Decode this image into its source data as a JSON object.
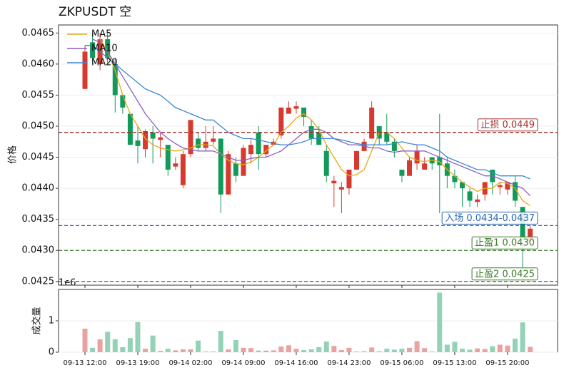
{
  "chart_data": {
    "type": "candlestick",
    "title": "ZKPUSDT  空",
    "ylabel": "价格",
    "volume_ylabel": "成交量",
    "volume_offset": "1e6",
    "x": [
      "09-13 12:00",
      "09-13 13:00",
      "09-13 14:00",
      "09-13 15:00",
      "09-13 16:00",
      "09-13 17:00",
      "09-13 18:00",
      "09-13 19:00",
      "09-13 20:00",
      "09-13 21:00",
      "09-13 22:00",
      "09-13 23:00",
      "09-14 00:00",
      "09-14 01:00",
      "09-14 02:00",
      "09-14 03:00",
      "09-14 04:00",
      "09-14 05:00",
      "09-14 06:00",
      "09-14 07:00",
      "09-14 08:00",
      "09-14 09:00",
      "09-14 10:00",
      "09-14 11:00",
      "09-14 12:00",
      "09-14 13:00",
      "09-14 14:00",
      "09-14 15:00",
      "09-14 16:00",
      "09-14 17:00",
      "09-14 18:00",
      "09-14 19:00",
      "09-14 20:00",
      "09-14 21:00",
      "09-14 22:00",
      "09-14 23:00",
      "09-15 00:00",
      "09-15 01:00",
      "09-15 02:00",
      "09-15 03:00",
      "09-15 04:00",
      "09-15 05:00",
      "09-15 06:00",
      "09-15 07:00",
      "09-15 08:00",
      "09-15 09:00",
      "09-15 10:00",
      "09-15 11:00",
      "09-15 12:00",
      "09-15 13:00",
      "09-15 14:00",
      "09-15 15:00",
      "09-15 16:00",
      "09-15 17:00",
      "09-15 18:00",
      "09-15 19:00",
      "09-15 20:00",
      "09-15 21:00",
      "09-15 22:00",
      "09-15 23:00"
    ],
    "open": [
      0.0456,
      0.04635,
      0.046,
      0.0464,
      0.046,
      0.0455,
      0.0452,
      0.04477,
      0.04463,
      0.0449,
      0.04478,
      0.0447,
      0.04435,
      0.04405,
      0.04455,
      0.0448,
      0.04465,
      0.04475,
      0.0448,
      0.0439,
      0.0444,
      0.0442,
      0.04455,
      0.0449,
      0.04455,
      0.0447,
      0.04485,
      0.0452,
      0.04528,
      0.0453,
      0.045,
      0.0449,
      0.0446,
      0.04408,
      0.04398,
      0.044,
      0.0443,
      0.0446,
      0.0448,
      0.045,
      0.0449,
      0.04475,
      0.0443,
      0.0442,
      0.0444,
      0.0443,
      0.0445,
      0.0445,
      0.0444,
      0.0442,
      0.0441,
      0.04395,
      0.04378,
      0.0439,
      0.0443,
      0.04402,
      0.04398,
      0.0441,
      0.0437,
      0.04315
    ],
    "high": [
      0.0463,
      0.0465,
      0.0465,
      0.0465,
      0.0461,
      0.0455,
      0.0452,
      0.045,
      0.04495,
      0.045,
      0.0449,
      0.0447,
      0.0445,
      0.0446,
      0.0451,
      0.0449,
      0.045,
      0.045,
      0.0448,
      0.0446,
      0.0445,
      0.0447,
      0.0448,
      0.045,
      0.0447,
      0.0448,
      0.0453,
      0.0454,
      0.0454,
      0.0453,
      0.0451,
      0.045,
      0.0447,
      0.0442,
      0.0441,
      0.0443,
      0.0446,
      0.0448,
      0.0454,
      0.045,
      0.0452,
      0.0448,
      0.0443,
      0.0445,
      0.0447,
      0.0445,
      0.0445,
      0.0452,
      0.0445,
      0.0443,
      0.0441,
      0.044,
      0.0439,
      0.0441,
      0.0443,
      0.0441,
      0.0441,
      0.0442,
      0.0437,
      0.0434
    ],
    "low": [
      0.0456,
      0.046,
      0.0459,
      0.046,
      0.04522,
      0.0452,
      0.0447,
      0.0444,
      0.0445,
      0.0444,
      0.0445,
      0.0442,
      0.0443,
      0.044,
      0.0445,
      0.0446,
      0.0446,
      0.0447,
      0.0436,
      0.0439,
      0.0441,
      0.0442,
      0.0444,
      0.0443,
      0.0445,
      0.0447,
      0.0448,
      0.0452,
      0.0452,
      0.045,
      0.0447,
      0.0447,
      0.0441,
      0.0437,
      0.0436,
      0.0439,
      0.0443,
      0.0446,
      0.0448,
      0.0447,
      0.0447,
      0.0445,
      0.0441,
      0.0442,
      0.0443,
      0.0443,
      0.0443,
      0.0436,
      0.044,
      0.044,
      0.0437,
      0.0437,
      0.0437,
      0.0438,
      0.0439,
      0.0439,
      0.0439,
      0.0437,
      0.0427,
      0.0431
    ],
    "close": [
      0.0462,
      0.0461,
      0.0464,
      0.0461,
      0.0455,
      0.0453,
      0.0447,
      0.04468,
      0.04492,
      0.0448,
      0.04482,
      0.0443,
      0.0444,
      0.04455,
      0.0451,
      0.04465,
      0.04475,
      0.0448,
      0.0439,
      0.04455,
      0.0442,
      0.04465,
      0.0447,
      0.04455,
      0.0447,
      0.04475,
      0.0453,
      0.0453,
      0.04532,
      0.04515,
      0.0448,
      0.0447,
      0.0442,
      0.04412,
      0.04402,
      0.0443,
      0.0446,
      0.04475,
      0.0453,
      0.0448,
      0.04475,
      0.0446,
      0.0442,
      0.04445,
      0.0446,
      0.0444,
      0.0444,
      0.04437,
      0.0442,
      0.0441,
      0.044,
      0.0438,
      0.04382,
      0.0441,
      0.0441,
      0.04405,
      0.0441,
      0.0438,
      0.0432,
      0.04335
    ],
    "volume": [
      750000,
      140000,
      410000,
      650000,
      410000,
      160000,
      450000,
      960000,
      110000,
      530000,
      40000,
      110000,
      60000,
      90000,
      90000,
      370000,
      20000,
      20000,
      680000,
      90000,
      390000,
      140000,
      130000,
      50000,
      50000,
      60000,
      180000,
      220000,
      110000,
      70000,
      90000,
      160000,
      340000,
      200000,
      70000,
      140000,
      20000,
      30000,
      150000,
      30000,
      110000,
      80000,
      110000,
      140000,
      350000,
      130000,
      20000,
      1900000,
      240000,
      330000,
      110000,
      80000,
      120000,
      100000,
      190000,
      240000,
      210000,
      430000,
      950000,
      170000
    ],
    "series": [
      {
        "name": "MA5",
        "color": "#e6a817",
        "values": [
          null,
          null,
          0.0464,
          0.0462,
          0.0459,
          0.0455,
          0.0452,
          0.045,
          0.0448,
          0.0447,
          0.04465,
          0.04462,
          0.0446,
          0.04462,
          0.04465,
          0.0447,
          0.0447,
          0.04468,
          0.04455,
          0.04445,
          0.0444,
          0.04438,
          0.04442,
          0.0445,
          0.0446,
          0.0447,
          0.0449,
          0.045,
          0.04513,
          0.0452,
          0.0451,
          0.04495,
          0.0447,
          0.0445,
          0.0443,
          0.0442,
          0.04422,
          0.0443,
          0.0446,
          0.0449,
          0.0449,
          0.0448,
          0.04465,
          0.0445,
          0.04445,
          0.04443,
          0.04445,
          0.04443,
          0.0443,
          0.0442,
          0.0441,
          0.04402,
          0.04395,
          0.044,
          0.044,
          0.0441,
          0.04408,
          0.044,
          0.0438,
          0.04372
        ]
      },
      {
        "name": "MA10",
        "color": "#8a5fc6",
        "values": [
          null,
          0.0464,
          0.04635,
          0.0462,
          0.046,
          0.0458,
          0.0456,
          0.0454,
          0.0452,
          0.04505,
          0.0449,
          0.0448,
          0.04472,
          0.04465,
          0.04462,
          0.0446,
          0.0446,
          0.0446,
          0.04455,
          0.0445,
          0.04445,
          0.04445,
          0.04448,
          0.0445,
          0.0445,
          0.04455,
          0.0446,
          0.0447,
          0.0448,
          0.0449,
          0.04495,
          0.04495,
          0.0449,
          0.0448,
          0.04475,
          0.0447,
          0.0447,
          0.04468,
          0.04465,
          0.04465,
          0.0446,
          0.04458,
          0.0446,
          0.0446,
          0.0446,
          0.0446,
          0.04455,
          0.0445,
          0.04445,
          0.0444,
          0.04435,
          0.0443,
          0.04425,
          0.0442,
          0.0442,
          0.04415,
          0.0441,
          0.04405,
          0.044,
          0.04388
        ]
      },
      {
        "name": "MA20",
        "color": "#3a86d4",
        "values": [
          0.0463,
          0.0463,
          0.0462,
          0.0461,
          0.046,
          0.0459,
          0.0458,
          0.0457,
          0.0456,
          0.04555,
          0.0455,
          0.0454,
          0.0453,
          0.04525,
          0.0452,
          0.04515,
          0.0451,
          0.0451,
          0.045,
          0.0449,
          0.04485,
          0.0448,
          0.0448,
          0.04478,
          0.04475,
          0.04472,
          0.0447,
          0.0447,
          0.04472,
          0.04475,
          0.0448,
          0.0448,
          0.0448,
          0.0448,
          0.04478,
          0.04475,
          0.04472,
          0.0447,
          0.0447,
          0.0447,
          0.0447,
          0.04472,
          0.04475,
          0.04472,
          0.0447,
          0.0447,
          0.04465,
          0.0446,
          0.0445,
          0.04445,
          0.0444,
          0.04435,
          0.0443,
          0.0443,
          0.04425,
          0.0442,
          0.0442,
          0.0442,
          0.0442,
          0.04415
        ]
      }
    ],
    "levels": [
      {
        "value": 0.0449,
        "label": "止损 0.0449",
        "color": "#a0302e"
      },
      {
        "value": 0.0434,
        "label": "入场 0.0434-0.0437",
        "color": "#2a68b0"
      },
      {
        "value": 0.043,
        "label": "止盈1 0.0430",
        "color": "#3a7a28"
      },
      {
        "value": 0.0425,
        "label": "止盈2 0.0425",
        "color": "#3a7a28"
      }
    ],
    "up_color": "#d63a2f",
    "down_color": "#119a5a",
    "volume_up_color": "#e8a3a0",
    "volume_down_color": "#93d2b5",
    "ylim": [
      0.04244,
      0.04663
    ],
    "yticks": [
      0.0425,
      {
        "value": 0.043,
        "label": "0.0430"
      },
      0.0435,
      {
        "value": 0.044,
        "label": "0.0440"
      },
      0.0445,
      {
        "value": 0.045,
        "label": "0.0450"
      },
      0.0455,
      {
        "value": 0.046,
        "label": "0.0460"
      },
      0.0465
    ],
    "volume_ylim": [
      0,
      2000000
    ],
    "volume_yticks": [
      0,
      {
        "value": 1000000,
        "label": "1"
      }
    ],
    "xticks": [
      "09-13 12:00",
      "09-13 19:00",
      "09-14 02:00",
      "09-14 09:00",
      "09-14 16:00",
      "09-14 23:00",
      "09-15 06:00",
      "09-15 13:00",
      "09-15 20:00"
    ],
    "legend": "upper left",
    "grid": true
  }
}
